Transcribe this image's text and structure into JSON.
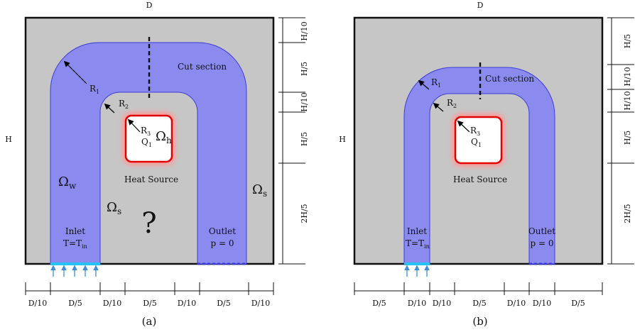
{
  "panels": [
    {
      "caption": "(a)",
      "width_label": "D",
      "height_label": "H",
      "cut_label": "Cut section",
      "r1": "R",
      "r1_sub": "1",
      "r2": "R",
      "r2_sub": "2",
      "r3": "R",
      "r3_sub": "3",
      "q1": "Q",
      "q1_sub": "1",
      "omega_h": "Ω",
      "omega_h_sub": "h",
      "omega_w": "Ω",
      "omega_w_sub": "w",
      "omega_s_left": "Ω",
      "omega_s_left_sub": "s",
      "omega_s_right": "Ω",
      "omega_s_right_sub": "s",
      "heat_source": "Heat Source",
      "question": "?",
      "inlet": "Inlet",
      "inlet_cond": "T=T",
      "inlet_cond_sub": "in",
      "outlet": "Outlet",
      "outlet_cond": "p = 0",
      "right_dims": [
        "H/10",
        "H/5",
        "H/10",
        "H/5",
        "2H/5"
      ],
      "bottom_dims": [
        "D/10",
        "D/5",
        "D/10",
        "D/5",
        "D/10",
        "D/5",
        "D/10"
      ]
    },
    {
      "caption": "(b)",
      "width_label": "D",
      "height_label": "H",
      "cut_label": "Cut section",
      "r1": "R",
      "r1_sub": "1",
      "r2": "R",
      "r2_sub": "2",
      "r3": "R",
      "r3_sub": "3",
      "q1": "Q",
      "q1_sub": "1",
      "heat_source": "Heat Source",
      "inlet": "Inlet",
      "inlet_cond": "T=T",
      "inlet_cond_sub": "in",
      "outlet": "Outlet",
      "outlet_cond": "p = 0",
      "right_dims": [
        "H/5",
        "H/10",
        "H/10",
        "H/5",
        "2H/5"
      ],
      "bottom_dims": [
        "D/5",
        "D/10",
        "D/10",
        "D/5",
        "D/10",
        "D/10",
        "D/5"
      ]
    }
  ],
  "colors": {
    "domain_fill": "#c6c6c6",
    "channel_fill": "#8b8bef",
    "channel_stroke": "#3b3bd9",
    "heat_source_stroke": "#e00000",
    "heat_source_glow": "#ff9a9a",
    "inlet_arrow": "#3f8fd8",
    "inlet_bar": "#25c3f3"
  }
}
